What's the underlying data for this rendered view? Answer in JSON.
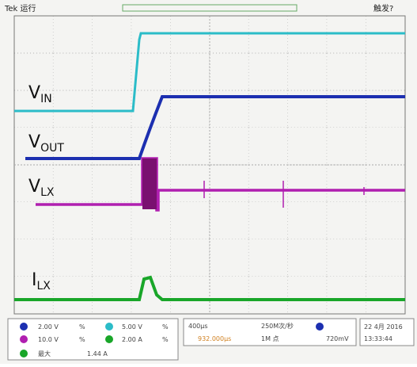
{
  "header": {
    "status": "Tek 运行",
    "trigger": "触发?"
  },
  "traces": [
    {
      "name": "V",
      "sub": "IN"
    },
    {
      "name": "V",
      "sub": "OUT"
    },
    {
      "name": "V",
      "sub": "LX"
    },
    {
      "name": "I",
      "sub": "LX"
    }
  ],
  "readouts": {
    "ch1_scale": "2.00 V",
    "ch1_unit": "%",
    "ch2_scale": "5.00 V",
    "ch2_unit": "%",
    "ch3_scale": "10.0 V",
    "ch3_unit": "%",
    "ch4_scale": "2.00 A",
    "ch4_unit": "%",
    "timebase": "400μs",
    "sample_rate": "250M次/秒",
    "record": "1M 点",
    "position": "932.000μs",
    "trigger_level": "720mV",
    "date": "22 4月 2016",
    "time": "13:33:44",
    "measure_label": "最大",
    "measure_value": "1.44 A"
  }
}
